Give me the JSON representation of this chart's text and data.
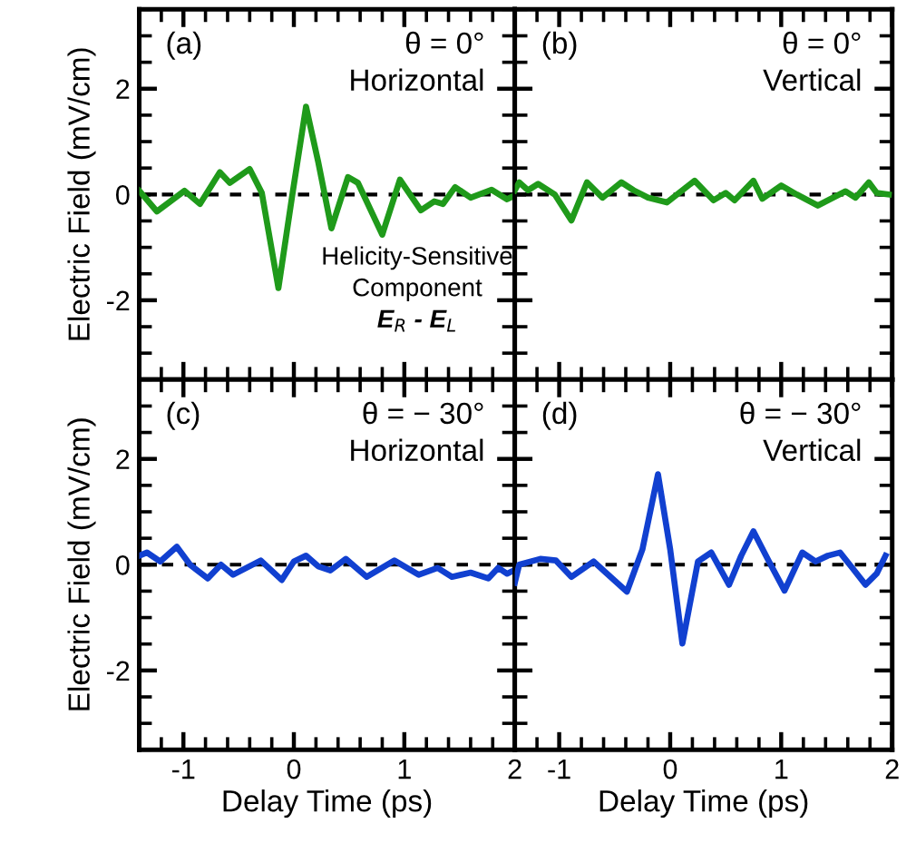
{
  "chart_data": [
    {
      "type": "line",
      "ylabel": "Electric Field (mV/cm)",
      "xlim": [
        -1.4,
        2
      ],
      "ylim": [
        -3.5,
        3.5
      ],
      "xticks": [
        -1,
        0,
        1,
        2
      ],
      "yticks": [
        -2,
        0,
        2
      ],
      "tick_labels": "y",
      "annotations": [
        "(a)",
        "θ = 0°",
        "Horizontal",
        "Helicity-Sensitive",
        "Component",
        "E$_{R}$ - E$_{L}$"
      ],
      "ref_lines": [
        {
          "axis": "y",
          "value": 0,
          "color": "#000000",
          "line_style": "dashed"
        }
      ],
      "series": [
        {
          "color": "#1f9a1a",
          "x": [
            -1.4,
            -1.24,
            -0.99,
            -0.85,
            -0.67,
            -0.58,
            -0.4,
            -0.29,
            -0.14,
            -0.01,
            0.11,
            0.22,
            0.34,
            0.49,
            0.58,
            0.8,
            0.96,
            1.15,
            1.27,
            1.35,
            1.46,
            1.6,
            1.79,
            1.93,
            2.0
          ],
          "values": [
            0.07,
            -0.32,
            0.07,
            -0.18,
            0.42,
            0.22,
            0.48,
            0.03,
            -1.77,
            0.05,
            1.66,
            0.62,
            -0.64,
            0.33,
            0.22,
            -0.76,
            0.28,
            -0.3,
            -0.13,
            -0.18,
            0.14,
            -0.06,
            0.09,
            -0.09,
            -0.02
          ]
        }
      ]
    },
    {
      "type": "line",
      "xlim": [
        -1.4,
        2
      ],
      "ylim": [
        -3.5,
        3.5
      ],
      "xticks": [
        -1,
        0,
        1,
        2
      ],
      "yticks": [
        -2,
        0,
        2
      ],
      "tick_labels": false,
      "annotations": [
        "(b)",
        "θ = 0°",
        "Vertical"
      ],
      "ref_lines": [
        {
          "axis": "y",
          "value": 0,
          "color": "#000000",
          "line_style": "dashed"
        }
      ],
      "series": [
        {
          "color": "#1f9a1a",
          "x": [
            -1.4,
            -1.36,
            -1.28,
            -1.19,
            -1.04,
            -0.89,
            -0.75,
            -0.61,
            -0.44,
            -0.33,
            -0.2,
            -0.03,
            0.22,
            0.39,
            0.5,
            0.58,
            0.75,
            0.83,
            1.0,
            1.14,
            1.33,
            1.58,
            1.67,
            1.79,
            1.86,
            1.97
          ],
          "values": [
            0.08,
            0.23,
            0.08,
            0.2,
            0.0,
            -0.49,
            0.23,
            -0.06,
            0.23,
            0.08,
            -0.06,
            -0.15,
            0.26,
            -0.11,
            0.03,
            -0.11,
            0.26,
            -0.08,
            0.17,
            0.0,
            -0.21,
            0.06,
            -0.06,
            0.23,
            0.03,
            0.0
          ]
        }
      ]
    },
    {
      "type": "line",
      "xlabel": "Delay Time (ps)",
      "ylabel": "Electric Field (mV/cm)",
      "xlim": [
        -1.4,
        2
      ],
      "ylim": [
        -3.5,
        3.5
      ],
      "xticks": [
        -1,
        0,
        1,
        2
      ],
      "yticks": [
        -2,
        0,
        2
      ],
      "annotations": [
        "(c)",
        "θ = − 30°",
        "Horizontal"
      ],
      "ref_lines": [
        {
          "axis": "y",
          "value": 0,
          "color": "#000000",
          "line_style": "dashed"
        }
      ],
      "series": [
        {
          "color": "#1140d0",
          "x": [
            -1.4,
            -1.33,
            -1.21,
            -1.06,
            -0.94,
            -0.78,
            -0.66,
            -0.55,
            -0.3,
            -0.11,
            0.0,
            0.11,
            0.22,
            0.33,
            0.47,
            0.66,
            0.91,
            1.13,
            1.3,
            1.43,
            1.6,
            1.76,
            1.85,
            1.93,
            2.0
          ],
          "values": [
            0.17,
            0.23,
            0.06,
            0.34,
            0.0,
            -0.26,
            0.0,
            -0.19,
            0.08,
            -0.29,
            0.06,
            0.17,
            -0.03,
            -0.11,
            0.11,
            -0.23,
            0.08,
            -0.19,
            -0.06,
            -0.23,
            -0.15,
            -0.26,
            -0.06,
            -0.17,
            -0.1
          ]
        }
      ]
    },
    {
      "type": "line",
      "xlabel": "Delay Time (ps)",
      "xlim": [
        -1.4,
        2
      ],
      "ylim": [
        -3.5,
        3.5
      ],
      "xticks": [
        -1,
        0,
        1,
        2
      ],
      "yticks": [
        -2,
        0,
        2
      ],
      "tick_labels": "x",
      "annotations": [
        "(d)",
        "θ = − 30°",
        "Vertical"
      ],
      "ref_lines": [
        {
          "axis": "y",
          "value": 0,
          "color": "#000000",
          "line_style": "dashed"
        }
      ],
      "series": [
        {
          "color": "#1140d0",
          "x": [
            -1.4,
            -1.36,
            -1.17,
            -1.03,
            -0.89,
            -0.69,
            -0.58,
            -0.39,
            -0.25,
            -0.11,
            0.0,
            0.11,
            0.25,
            0.37,
            0.53,
            0.64,
            0.75,
            0.89,
            1.03,
            1.19,
            1.31,
            1.42,
            1.53,
            1.64,
            1.76,
            1.86,
            1.94
          ],
          "values": [
            -0.34,
            0.0,
            0.11,
            0.08,
            -0.23,
            0.06,
            -0.15,
            -0.51,
            0.29,
            1.71,
            0.29,
            -1.49,
            0.06,
            0.23,
            -0.38,
            0.17,
            0.63,
            0.06,
            -0.49,
            0.23,
            0.06,
            0.17,
            0.23,
            -0.06,
            -0.38,
            -0.17,
            0.17
          ]
        }
      ]
    }
  ]
}
